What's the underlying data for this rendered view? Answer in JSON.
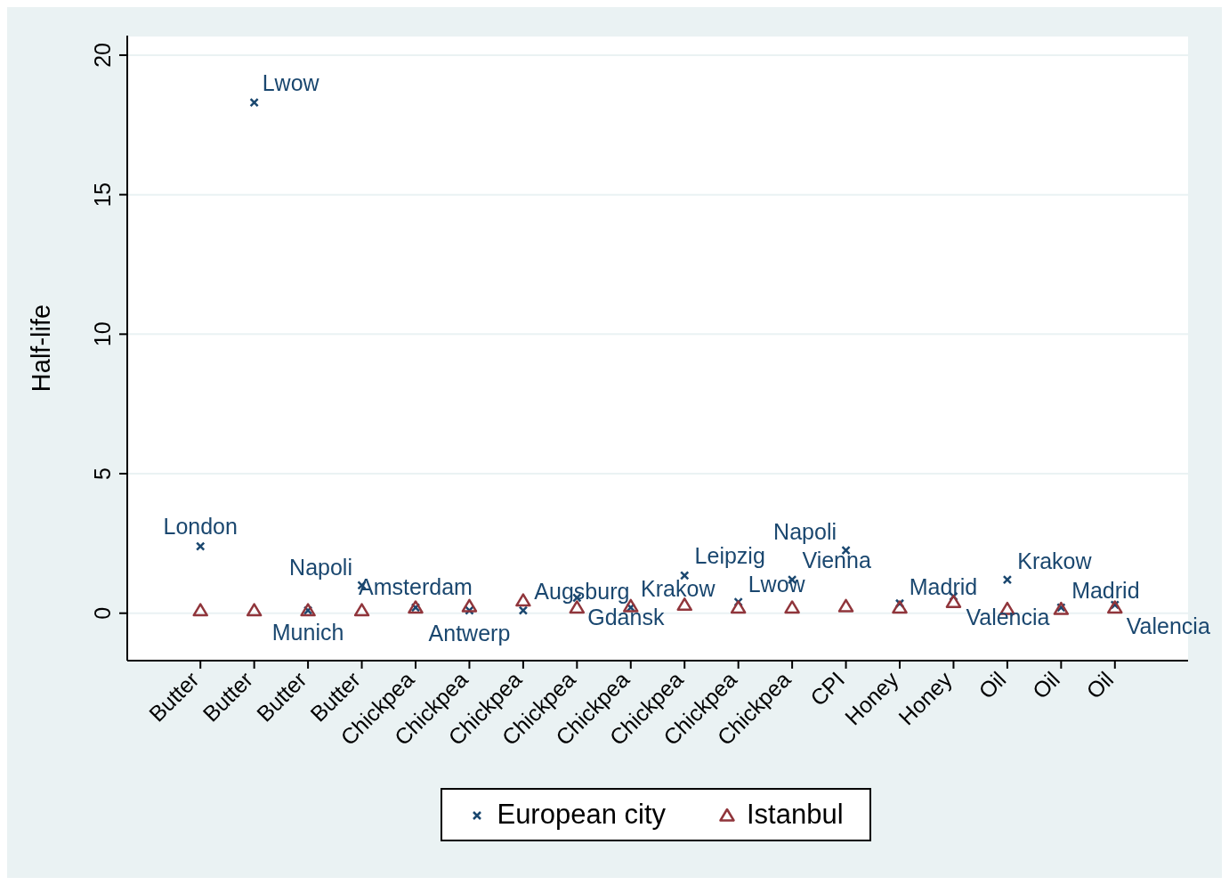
{
  "chart_data": {
    "type": "scatter",
    "ylabel": "Half-life",
    "categories": [
      "Butter",
      "Butter",
      "Butter",
      "Butter",
      "Chickpea",
      "Chickpea",
      "Chickpea",
      "Chickpea",
      "Chickpea",
      "Chickpea",
      "Chickpea",
      "Chickpea",
      "CPI",
      "Honey",
      "Honey",
      "Oil",
      "Oil",
      "Oil"
    ],
    "series": [
      {
        "name": "European city",
        "color": "#1a476f",
        "marker": "cross",
        "values": [
          2.4,
          18.3,
          0.1,
          1.0,
          0.2,
          0.1,
          0.1,
          0.55,
          0.2,
          1.35,
          0.4,
          1.2,
          2.25,
          0.35,
          0.6,
          1.2,
          0.2,
          0.3
        ],
        "value_labels": [
          "London",
          "Lwow",
          "Munich",
          "Napoli",
          "Amsterdam",
          "Antwerp",
          "Augsburg",
          "Gdansk",
          "Krakow",
          "Leipzig",
          "Lwow",
          "Vienna",
          "Napoli",
          "Madrid",
          "Valencia",
          "Krakow",
          "Madrid",
          "Valencia"
        ]
      },
      {
        "name": "Istanbul",
        "color": "#90353b",
        "marker": "triangle",
        "values": [
          0.1,
          0.1,
          0.1,
          0.1,
          0.2,
          0.25,
          0.45,
          0.2,
          0.25,
          0.3,
          0.2,
          0.2,
          0.25,
          0.2,
          0.4,
          0.15,
          0.15,
          0.2
        ]
      }
    ],
    "ylim": [
      -1.7,
      20.7
    ],
    "yticks": [
      0,
      5,
      10,
      15,
      20
    ],
    "grid": "y",
    "legend": "bottom"
  }
}
